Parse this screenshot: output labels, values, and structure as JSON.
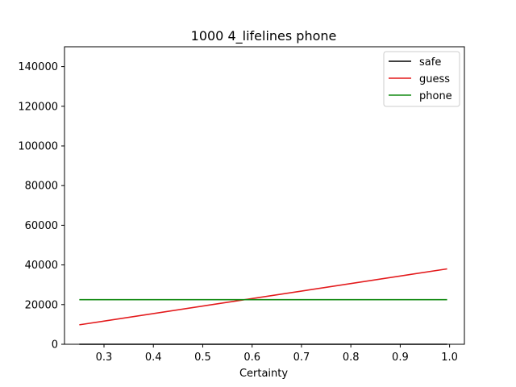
{
  "chart_data": {
    "type": "line",
    "title": "1000 4_lifelines phone",
    "xlabel": "Certainty",
    "ylabel": "",
    "xlim": [
      0.22,
      1.03
    ],
    "ylim": [
      0,
      150000
    ],
    "xticks": [
      0.3,
      0.4,
      0.5,
      0.6,
      0.7,
      0.8,
      0.9,
      1.0
    ],
    "xtick_labels": [
      "0.3",
      "0.4",
      "0.5",
      "0.6",
      "0.7",
      "0.8",
      "0.9",
      "1.0"
    ],
    "yticks": [
      0,
      20000,
      40000,
      60000,
      80000,
      100000,
      120000,
      140000
    ],
    "ytick_labels": [
      "0",
      "20000",
      "40000",
      "60000",
      "80000",
      "100000",
      "120000",
      "140000"
    ],
    "grid": false,
    "legend_position": "upper right",
    "series": [
      {
        "name": "safe",
        "color": "#000000",
        "x": [
          0.25,
          0.995
        ],
        "y": [
          0,
          0
        ]
      },
      {
        "name": "guess",
        "color": "#e31a1c",
        "x": [
          0.25,
          0.995
        ],
        "y": [
          9800,
          38000
        ]
      },
      {
        "name": "phone",
        "color": "#138a13",
        "x": [
          0.25,
          0.995
        ],
        "y": [
          22500,
          22500
        ]
      }
    ]
  }
}
